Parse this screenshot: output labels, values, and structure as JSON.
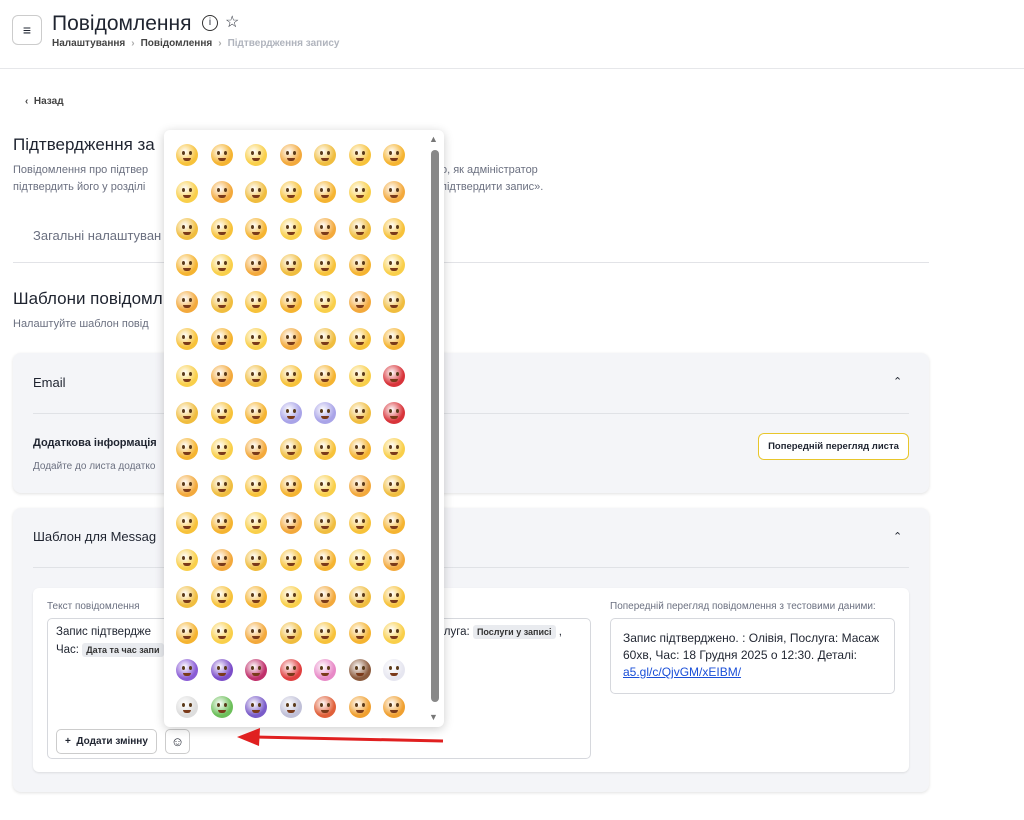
{
  "header": {
    "title": "Повідомлення",
    "breadcrumb": [
      "Налаштування",
      "Повідомлення",
      "Підтвердження запису"
    ]
  },
  "back": "Назад",
  "section": {
    "title": "Підтвердження за",
    "description_left": [
      "Повідомлення про підтвер",
      "підтвердить його у розділі"
    ],
    "description_right": [
      "о, як адміністратор",
      "підтвердити запис»."
    ],
    "tab": "Загальні налаштуван"
  },
  "templates": {
    "title": "Шаблони повідомл",
    "subtitle": "Налаштуйте шаблон повід"
  },
  "email_card": {
    "title": "Email",
    "extra_title": "Додаткова інформація",
    "extra_text": "Додайте до листа додатко",
    "preview_button": "Попередній перегляд листа"
  },
  "message_card": {
    "title": "Шаблон для Messag",
    "text_label": "Текст повідомлення",
    "line1_start": "Запис підтвердже",
    "line1_service": "слуга:",
    "line1_chip": "Послуги у записі",
    "line1_comma": ",",
    "line2_start": "Час:",
    "line2_chip": "Дата та час запи",
    "add_variable": "Додати змінну",
    "preview_label": "Попередній перегляд повідомлення з тестовими даними:",
    "preview_text": "Запис підтверджено. : Олівія, Послуга: Масаж 60хв, Час: 18 Грудня 2025 о 12:30. Деталі:",
    "preview_link": "a5.gl/c/QjvGM/xEIBM/"
  }
}
